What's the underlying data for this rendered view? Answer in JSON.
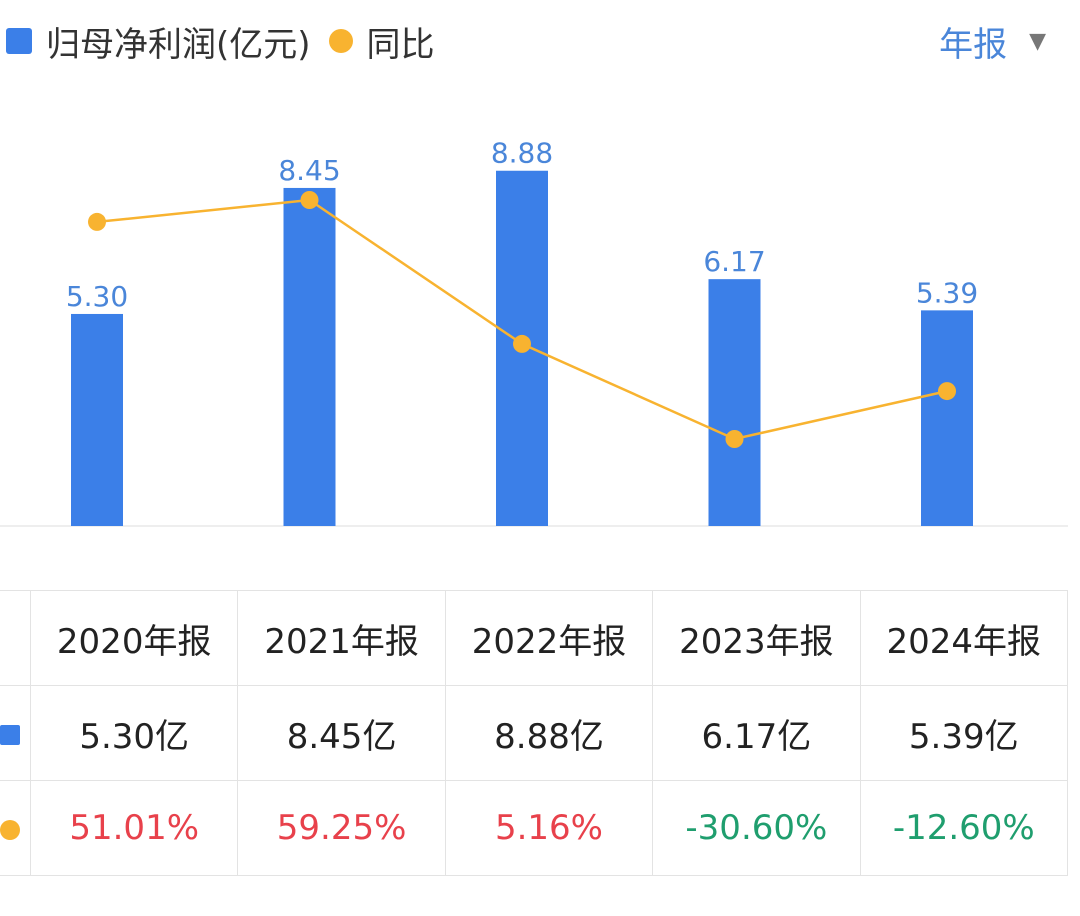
{
  "legend": {
    "bar_label": "归母净利润(亿元)",
    "line_label": "同比"
  },
  "period_selector": {
    "label": "年报",
    "icon": "caret-down-icon"
  },
  "colors": {
    "bar": "#3b7fe8",
    "line": "#f8b330",
    "positive": "#e8414b",
    "negative": "#1f9e6e",
    "accent": "#4a86d9"
  },
  "chart_data": {
    "type": "bar",
    "categories": [
      "2020年报",
      "2021年报",
      "2022年报",
      "2023年报",
      "2024年报"
    ],
    "series": [
      {
        "name": "归母净利润(亿元)",
        "type": "bar",
        "values": [
          5.3,
          8.45,
          8.88,
          6.17,
          5.39
        ],
        "labels": [
          "5.30",
          "8.45",
          "8.88",
          "6.17",
          "5.39"
        ]
      },
      {
        "name": "同比",
        "type": "line",
        "values": [
          51.01,
          59.25,
          5.16,
          -30.6,
          -12.6
        ]
      }
    ],
    "title": "",
    "xlabel": "",
    "ylabel": "",
    "grid": false,
    "legend_position": "top-left"
  },
  "table": {
    "headers": [
      "2020年报",
      "2021年报",
      "2022年报",
      "2023年报",
      "2024年报"
    ],
    "profit_row": [
      "5.30亿",
      "8.45亿",
      "8.88亿",
      "6.17亿",
      "5.39亿"
    ],
    "yoy_row": [
      "51.01%",
      "59.25%",
      "5.16%",
      "-30.60%",
      "-12.60%"
    ]
  }
}
